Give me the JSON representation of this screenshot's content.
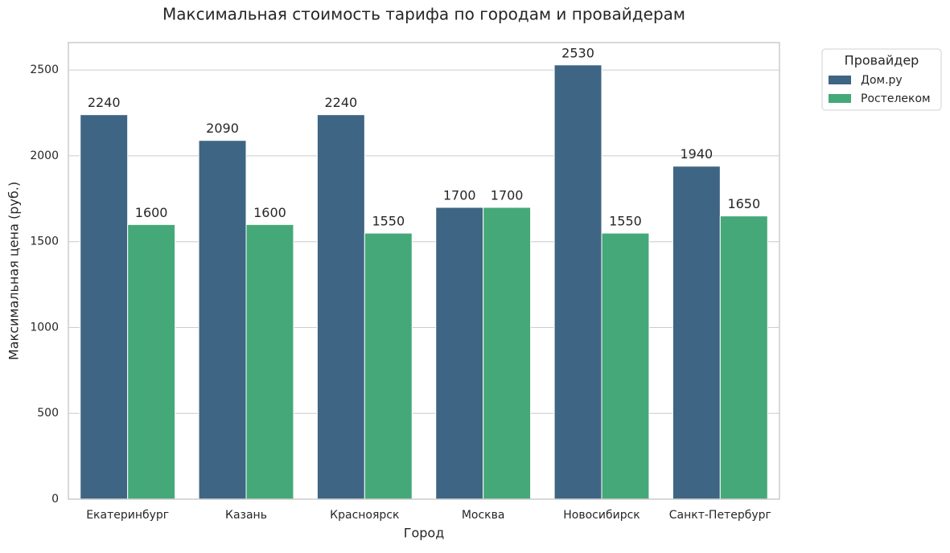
{
  "chart_data": {
    "type": "bar",
    "title": "Максимальная стоимость тарифа по городам и провайдерам",
    "x_label": "Город",
    "y_label": "Максимальная цена (руб.)",
    "categories": [
      "Екатеринбург",
      "Казань",
      "Красноярск",
      "Москва",
      "Новосибирск",
      "Санкт-Петербург"
    ],
    "series": [
      {
        "name": "Дом.ру",
        "color": "#3e6583",
        "values": [
          2240,
          2090,
          2240,
          1700,
          2530,
          1940
        ]
      },
      {
        "name": "Ростелеком",
        "color": "#45a878",
        "values": [
          1600,
          1600,
          1550,
          1700,
          1550,
          1650
        ]
      }
    ],
    "legend_title": "Провайдер",
    "legend": "outside upper right",
    "ylim": [
      0,
      2660
    ],
    "yticks": [
      0,
      500,
      1000,
      1500,
      2000,
      2500
    ],
    "grid": true
  }
}
